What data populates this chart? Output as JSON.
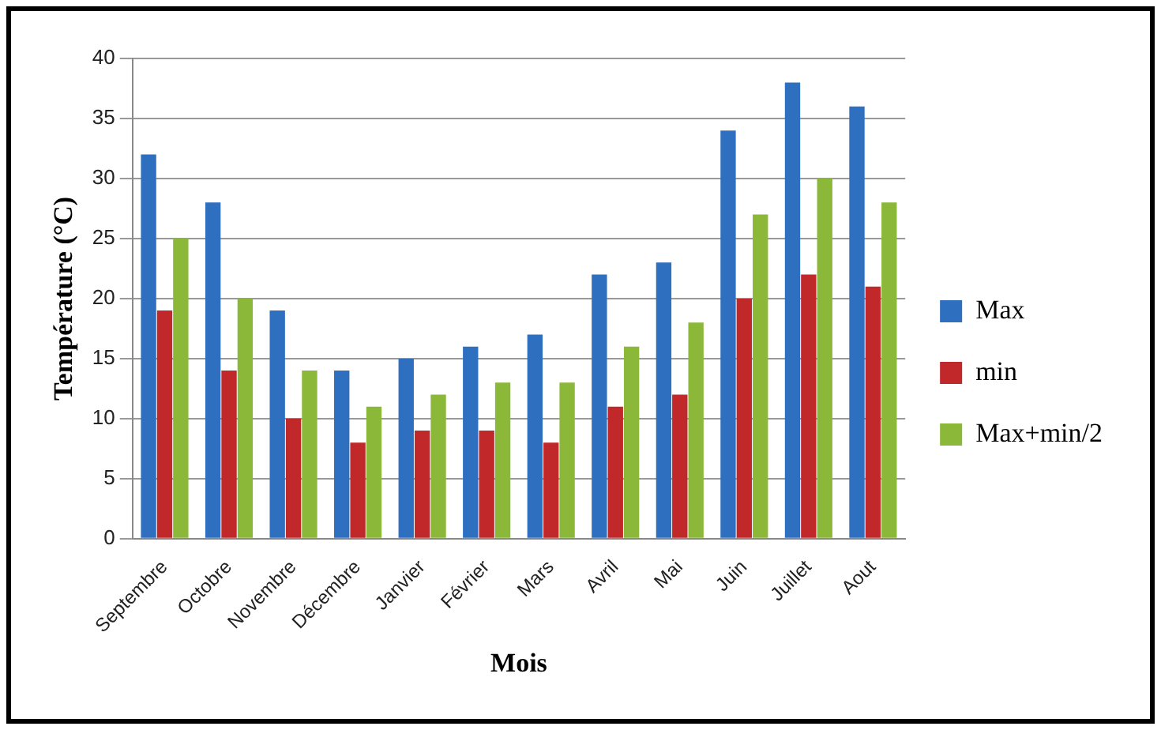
{
  "chart_data": {
    "type": "bar",
    "xlabel": "Mois",
    "ylabel": "Température (°C)",
    "categories": [
      "Septembre",
      "Octobre",
      "Novembre",
      "Décembre",
      "Janvier",
      "Février",
      "Mars",
      "Avril",
      "Mai",
      "Juin",
      "Juillet",
      "Aout"
    ],
    "series": [
      {
        "name": "Max",
        "color": "#2e6fc0",
        "values": [
          32,
          28,
          19,
          14,
          15,
          16,
          17,
          22,
          23,
          34,
          38,
          36
        ]
      },
      {
        "name": "min",
        "color": "#c0282a",
        "values": [
          19,
          14,
          10,
          8,
          9,
          9,
          8,
          11,
          12,
          20,
          22,
          21
        ]
      },
      {
        "name": "Max+min/2",
        "color": "#8cb83a",
        "values": [
          25,
          20,
          14,
          11,
          12,
          13,
          13,
          16,
          18,
          27,
          30,
          28
        ]
      }
    ],
    "ylim": [
      0,
      40
    ],
    "yticks": [
      0,
      5,
      10,
      15,
      20,
      25,
      30,
      35,
      40
    ],
    "grid": "y",
    "legend": "right"
  }
}
